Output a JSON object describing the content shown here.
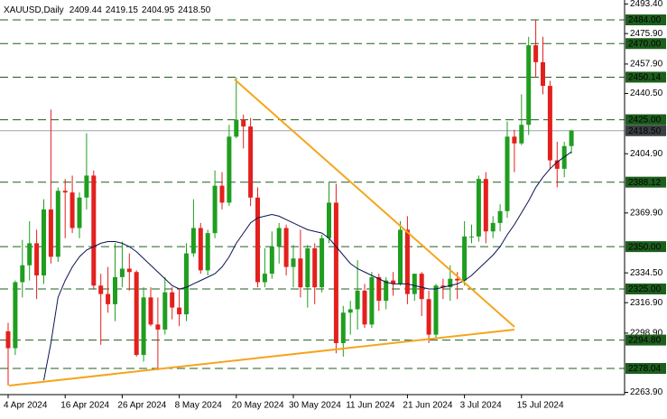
{
  "chart_data": {
    "type": "candlestick",
    "title": "XAUUSD,Daily",
    "header_values": [
      "2409.44",
      "2419.15",
      "2404.95",
      "2418.50"
    ],
    "categories": [
      "4 Apr 2024",
      null,
      null,
      null,
      null,
      null,
      null,
      null,
      "16 Apr 2024",
      null,
      null,
      null,
      null,
      null,
      null,
      null,
      "26 Apr 2024",
      null,
      null,
      null,
      null,
      null,
      null,
      null,
      "8 May 2024",
      null,
      null,
      null,
      null,
      null,
      null,
      null,
      "20 May 2024",
      null,
      null,
      null,
      null,
      null,
      null,
      null,
      "30 May 2024",
      null,
      null,
      null,
      null,
      null,
      null,
      null,
      "11 Jun 2024",
      null,
      null,
      null,
      null,
      null,
      null,
      null,
      "21 Jun 2024",
      null,
      null,
      null,
      null,
      null,
      null,
      null,
      "3 Jul 2024",
      null,
      null,
      null,
      null,
      null,
      null,
      null,
      "15 Jul 2024",
      null,
      null,
      null,
      null,
      null,
      null,
      null
    ],
    "open": [
      2300,
      2290,
      2329,
      2339,
      2352,
      2333,
      2372,
      2344,
      2383,
      2382,
      2361,
      2379,
      2392,
      2327,
      2322,
      2316,
      2332,
      2337,
      2335,
      2286,
      2320,
      2304,
      2301,
      2323,
      2314,
      2310,
      2346,
      2361,
      2336,
      2358,
      2386,
      2376,
      2415,
      2425,
      2421,
      2379,
      2329,
      2334,
      2350,
      2361,
      2338,
      2343,
      2326,
      2349,
      2326,
      2355,
      2376,
      2293,
      2311,
      2313,
      2324,
      2304,
      2332,
      2318,
      2330,
      2328,
      2360,
      2322,
      2334,
      2319,
      2298,
      2327,
      2326,
      2331,
      2330,
      2356,
      2356,
      2390,
      2359,
      2364,
      2371,
      2415,
      2411,
      2422,
      2469,
      2459,
      2445,
      2401,
      2396,
      2409.44
    ],
    "high": [
      2305,
      2330,
      2354,
      2365,
      2360,
      2378,
      2431,
      2385,
      2390,
      2392,
      2382,
      2417,
      2395,
      2334,
      2338,
      2352,
      2353,
      2346,
      2336,
      2326,
      2326,
      2320,
      2332,
      2326,
      2325,
      2352,
      2378,
      2364,
      2360,
      2395,
      2394,
      2422,
      2450,
      2428,
      2426,
      2385,
      2349,
      2359,
      2364,
      2363,
      2351,
      2360,
      2351,
      2352,
      2357,
      2388,
      2387,
      2315,
      2318,
      2342,
      2328,
      2335,
      2334,
      2332,
      2335,
      2365,
      2368,
      2334,
      2335,
      2324,
      2328,
      2331,
      2339,
      2335,
      2365,
      2363,
      2392,
      2394,
      2368,
      2375,
      2424,
      2419,
      2440,
      2474,
      2484,
      2474,
      2448,
      2412,
      2412,
      2419.15
    ],
    "low": [
      2268,
      2286,
      2320,
      2330,
      2319,
      2328,
      2340,
      2341,
      2355,
      2358,
      2355,
      2372,
      2325,
      2292,
      2311,
      2306,
      2326,
      2324,
      2285,
      2282,
      2303,
      2277,
      2298,
      2307,
      2303,
      2306,
      2344,
      2334,
      2333,
      2355,
      2372,
      2374,
      2414,
      2408,
      2374,
      2326,
      2326,
      2331,
      2340,
      2333,
      2326,
      2320,
      2314,
      2316,
      2323,
      2352,
      2287,
      2285,
      2298,
      2301,
      2302,
      2302,
      2312,
      2313,
      2321,
      2327,
      2316,
      2318,
      2309,
      2293,
      2296,
      2319,
      2318,
      2319,
      2327,
      2352,
      2353,
      2352,
      2355,
      2359,
      2367,
      2394,
      2410,
      2416,
      2450,
      2440,
      2396,
      2385,
      2391,
      2404.95
    ],
    "close": [
      2290,
      2329,
      2339,
      2352,
      2333,
      2372,
      2344,
      2383,
      2382,
      2361,
      2379,
      2392,
      2327,
      2322,
      2316,
      2332,
      2337,
      2335,
      2286,
      2320,
      2304,
      2301,
      2323,
      2314,
      2310,
      2346,
      2361,
      2336,
      2358,
      2386,
      2376,
      2415,
      2425,
      2421,
      2379,
      2329,
      2334,
      2350,
      2361,
      2338,
      2343,
      2326,
      2349,
      2326,
      2355,
      2376,
      2293,
      2311,
      2313,
      2324,
      2304,
      2332,
      2318,
      2330,
      2328,
      2360,
      2322,
      2334,
      2319,
      2298,
      2327,
      2326,
      2331,
      2330,
      2356,
      2356,
      2390,
      2359,
      2364,
      2371,
      2415,
      2411,
      2422,
      2469,
      2459,
      2445,
      2401,
      2396,
      2409.44,
      2418.5
    ],
    "up_color": "#1f9e1f",
    "down_color": "#e3201d",
    "ma": {
      "color": "#0c1450",
      "values": [
        null,
        null,
        null,
        null,
        null,
        2271,
        2293,
        2320,
        2330,
        2338,
        2344,
        2348,
        2350,
        2352,
        2353,
        2353,
        2352,
        2350,
        2347,
        2343,
        2339,
        2335,
        2331,
        2327,
        2325,
        2326,
        2328,
        2330,
        2332,
        2334,
        2338,
        2344,
        2352,
        2358,
        2364,
        2367,
        2368,
        2369,
        2368,
        2366,
        2364,
        2362,
        2360,
        2359,
        2358,
        2355,
        2350,
        2345,
        2340,
        2337,
        2335,
        2333,
        2331,
        2329,
        2328,
        2328,
        2328,
        2327,
        2326,
        2325,
        2325,
        2326,
        2327,
        2328,
        2330,
        2333,
        2337,
        2341,
        2345,
        2350,
        2357,
        2363,
        2370,
        2377,
        2385,
        2391,
        2396,
        2400,
        2403,
        2406
      ]
    },
    "levels": [
      {
        "value": 2484,
        "label": "2484.00"
      },
      {
        "value": 2470,
        "label": "2470.00"
      },
      {
        "value": 2450.14,
        "label": "2450.14"
      },
      {
        "value": 2425,
        "label": "2425.00"
      },
      {
        "value": 2388.12,
        "label": "2388.12"
      },
      {
        "value": 2350,
        "label": "2350.00"
      },
      {
        "value": 2325,
        "label": "2325.00"
      },
      {
        "value": 2294.8,
        "label": "2294.80"
      },
      {
        "value": 2278.04,
        "label": "2278.04"
      }
    ],
    "level_color": "#1d5e1d",
    "current_price": {
      "value": 2418.5,
      "label": "2418.50"
    },
    "ylim": [
      2262.56,
      2495.74
    ],
    "yticks": [
      {
        "value": 2493.4,
        "label": "2493.40"
      },
      {
        "value": 2475.9,
        "label": "2475.90"
      },
      {
        "value": 2457.9,
        "label": "2457.90"
      },
      {
        "value": 2440.5,
        "label": "2440.50"
      },
      {
        "value": 2404.9,
        "label": "2404.90"
      },
      {
        "value": 2369.9,
        "label": "2369.90"
      },
      {
        "value": 2334.5,
        "label": "2334.50"
      },
      {
        "value": 2316.9,
        "label": "2316.90"
      },
      {
        "value": 2298.9,
        "label": "2298.90"
      },
      {
        "value": 2263.9,
        "label": "2263.90"
      }
    ]
  }
}
